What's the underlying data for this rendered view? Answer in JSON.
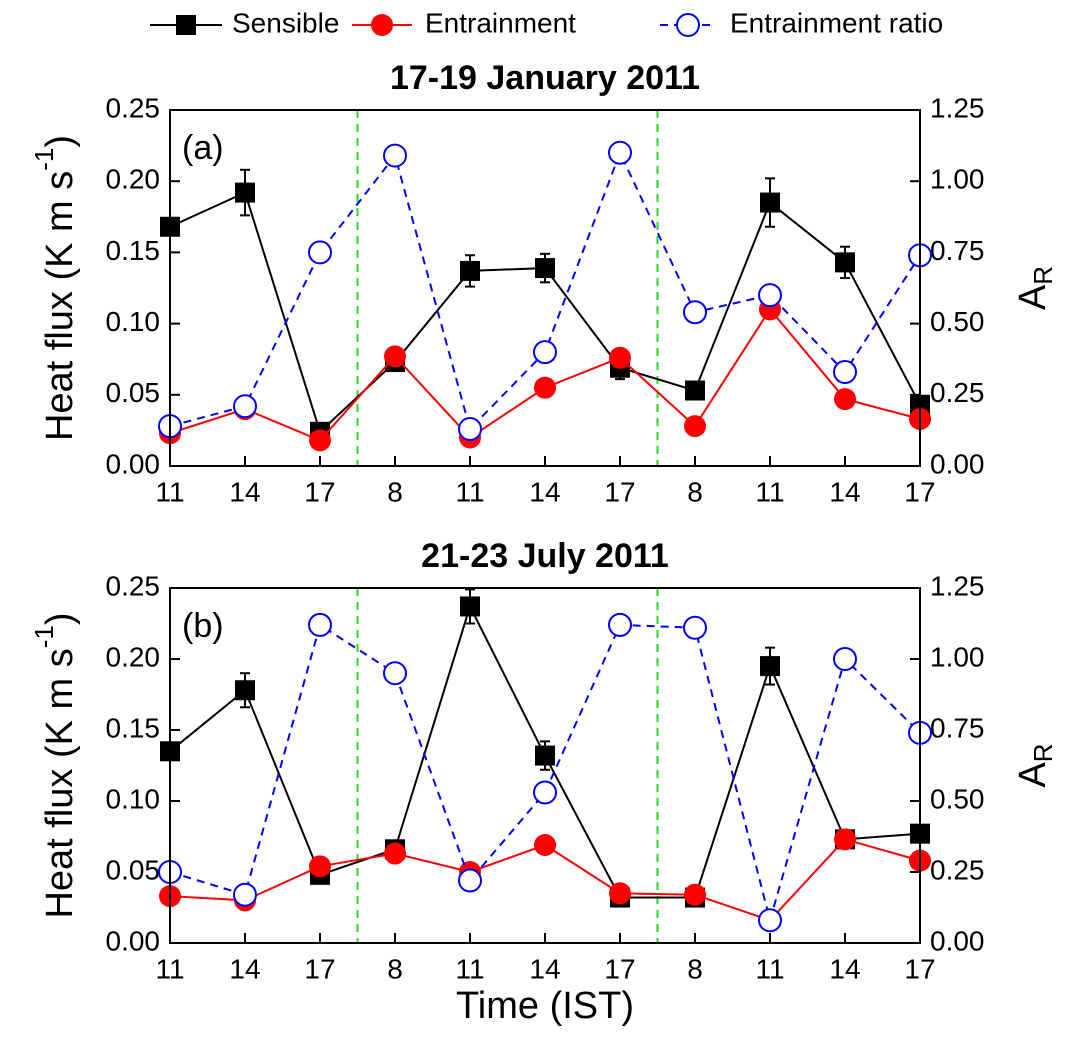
{
  "chart_data": [
    {
      "type": "line",
      "title": "17-19 January 2011",
      "label": "(a)",
      "ylabel": [
        "Heat flux (K m s",
        "-1",
        ")"
      ],
      "y2label": [
        "A",
        "R"
      ],
      "categories": [
        "11",
        "14",
        "17",
        "8",
        "11",
        "14",
        "17",
        "8",
        "11",
        "14",
        "17"
      ],
      "ylim": [
        0,
        0.25
      ],
      "yticks": [
        {
          "value": 0,
          "label": "0.00"
        },
        {
          "value": 0.05,
          "label": "0.05"
        },
        {
          "value": 0.1,
          "label": "0.10"
        },
        {
          "value": 0.15,
          "label": "0.15"
        },
        {
          "value": 0.2,
          "label": "0.20"
        },
        {
          "value": 0.25,
          "label": "0.25"
        }
      ],
      "y2lim": [
        0,
        1.25
      ],
      "y2ticks": [
        {
          "value": 0,
          "label": "0.00"
        },
        {
          "value": 0.25,
          "label": "0.25"
        },
        {
          "value": 0.5,
          "label": "0.50"
        },
        {
          "value": 0.75,
          "label": "0.75"
        },
        {
          "value": 1,
          "label": "1.00"
        },
        {
          "value": 1.25,
          "label": "1.25"
        }
      ],
      "series": [
        {
          "name": "Sensible",
          "color": "#000000",
          "marker": "square",
          "dashed": false,
          "values": [
            0.168,
            0.192,
            0.024,
            0.073,
            0.137,
            0.139,
            0.069,
            0.053,
            0.185,
            0.143,
            0.043
          ],
          "errors": [
            0.004,
            0.016,
            0.004,
            0.004,
            0.011,
            0.01,
            0.008,
            0.003,
            0.017,
            0.011,
            0.003
          ]
        },
        {
          "name": "Entrainment",
          "color": "#ff0000",
          "marker": "circle",
          "dashed": false,
          "values": [
            0.023,
            0.04,
            0.018,
            0.077,
            0.02,
            0.055,
            0.076,
            0.028,
            0.11,
            0.047,
            0.033
          ]
        },
        {
          "name": "Entrainment ratio",
          "color": "#0000ff",
          "marker": "open-circle",
          "dashed": true,
          "axis": "y2",
          "values": [
            0.14,
            0.21,
            0.75,
            1.09,
            0.13,
            0.4,
            1.1,
            0.54,
            0.6,
            0.33,
            0.74
          ]
        }
      ]
    },
    {
      "type": "line",
      "title": "21-23 July 2011",
      "label": "(b)",
      "ylabel": [
        "Heat flux (K m s",
        "-1",
        ")"
      ],
      "y2label": [
        "A",
        "R"
      ],
      "xlabel": "Time (IST)",
      "categories": [
        "11",
        "14",
        "17",
        "8",
        "11",
        "14",
        "17",
        "8",
        "11",
        "14",
        "17"
      ],
      "ylim": [
        0,
        0.25
      ],
      "yticks": [
        {
          "value": 0,
          "label": "0.00"
        },
        {
          "value": 0.05,
          "label": "0.05"
        },
        {
          "value": 0.1,
          "label": "0.10"
        },
        {
          "value": 0.15,
          "label": "0.15"
        },
        {
          "value": 0.2,
          "label": "0.20"
        },
        {
          "value": 0.25,
          "label": "0.25"
        }
      ],
      "y2lim": [
        0,
        1.25
      ],
      "y2ticks": [
        {
          "value": 0,
          "label": "0.00"
        },
        {
          "value": 0.25,
          "label": "0.25"
        },
        {
          "value": 0.5,
          "label": "0.50"
        },
        {
          "value": 0.75,
          "label": "0.75"
        },
        {
          "value": 1,
          "label": "1.00"
        },
        {
          "value": 1.25,
          "label": "1.25"
        }
      ],
      "series": [
        {
          "color": "#000000",
          "marker": "square",
          "dashed": false,
          "values": [
            0.135,
            0.178,
            0.048,
            0.066,
            0.237,
            0.132,
            0.032,
            0.032,
            0.195,
            0.073,
            0.077
          ],
          "errors": [
            0.004,
            0.012,
            0.003,
            0.004,
            0.012,
            0.01,
            0.003,
            0.003,
            0.013,
            0.003,
            0.003
          ]
        },
        {
          "color": "#ff0000",
          "marker": "circle",
          "dashed": false,
          "values": [
            0.033,
            0.03,
            0.054,
            0.063,
            0.05,
            0.069,
            0.035,
            0.034,
            0.016,
            0.073,
            0.058
          ]
        },
        {
          "color": "#0000ff",
          "marker": "open-circle",
          "dashed": true,
          "axis": "y2",
          "values": [
            0.25,
            0.17,
            1.12,
            0.95,
            0.22,
            0.53,
            1.12,
            1.11,
            0.08,
            1.0,
            0.74
          ]
        }
      ]
    }
  ]
}
